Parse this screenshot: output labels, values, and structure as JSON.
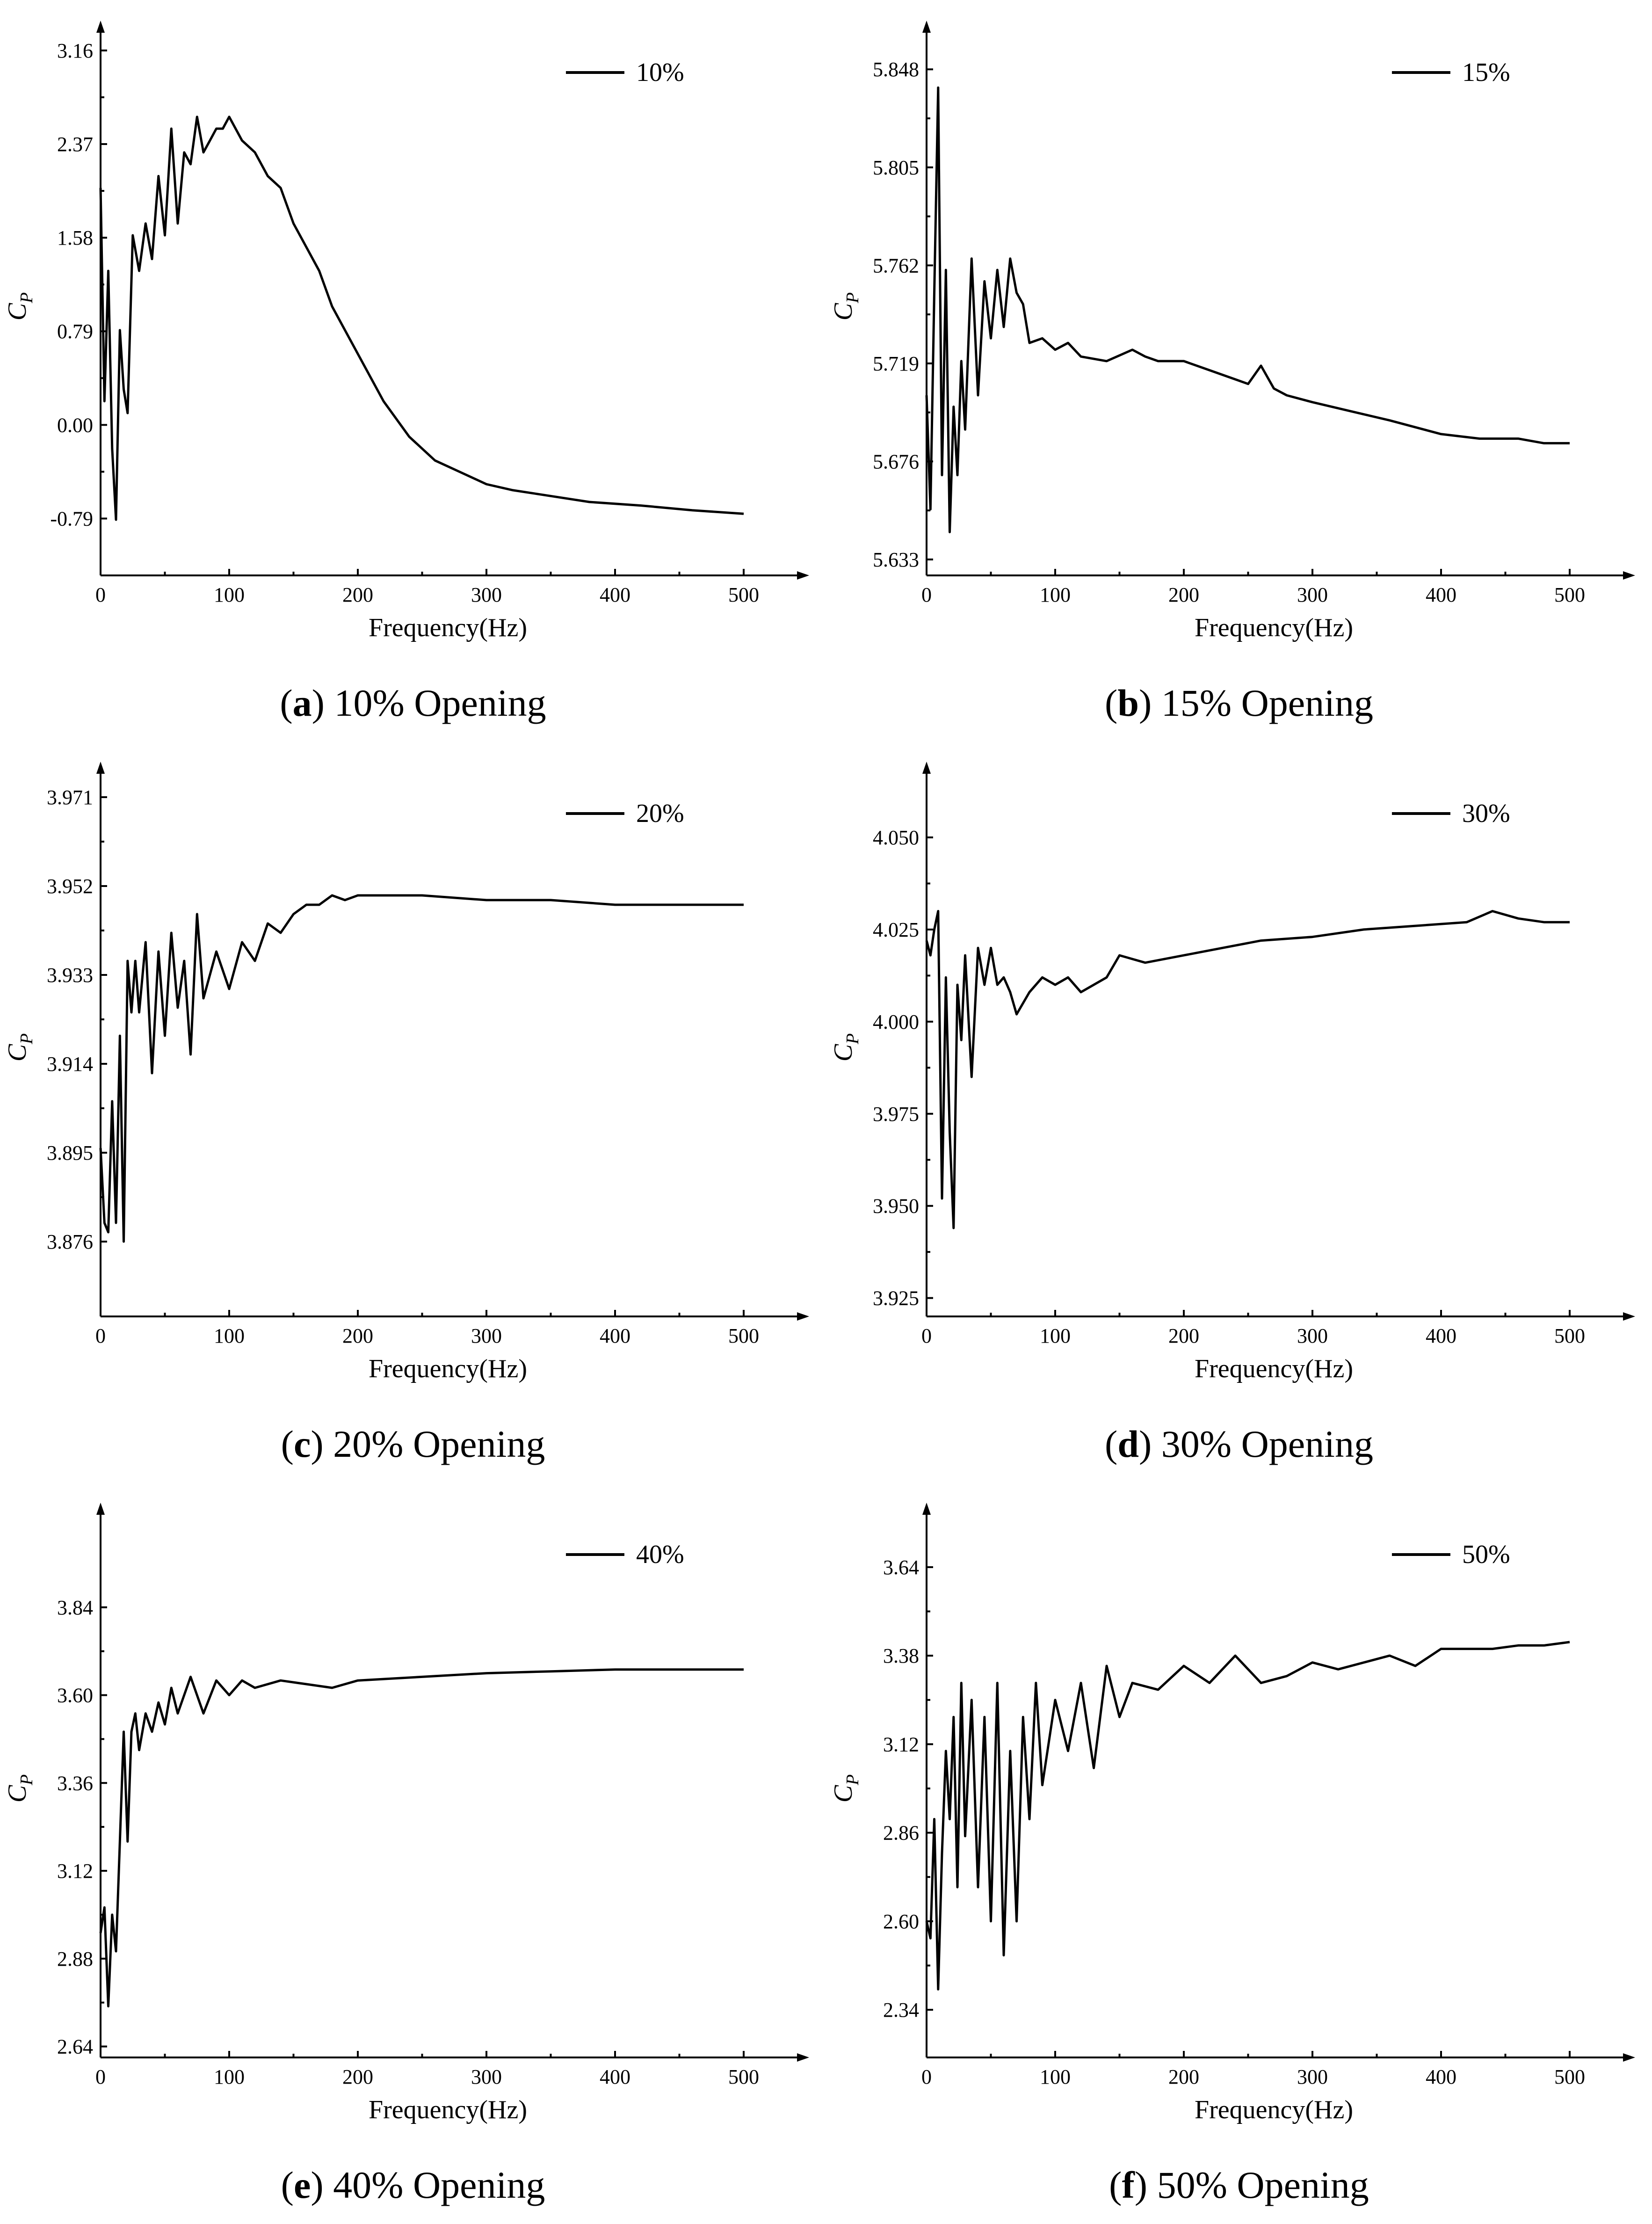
{
  "chart_data": [
    {
      "type": "line",
      "panel": "a",
      "caption_letter": "a",
      "caption_text": "10% Opening",
      "xlabel": "Frequency(Hz)",
      "ylabel": "C",
      "ylabel_sub": "P",
      "legend": "10%",
      "xlim": [
        0,
        540
      ],
      "ylim": [
        -1.27,
        3.27
      ],
      "xticks": [
        0,
        100,
        200,
        300,
        400,
        500
      ],
      "yticks": [
        -0.79,
        0.0,
        0.79,
        1.58,
        2.37,
        3.16
      ],
      "ytick_labels": [
        "-0.79",
        "0.00",
        "0.79",
        "1.58",
        "2.37",
        "3.16"
      ],
      "series": [
        {
          "name": "10%",
          "x": [
            0,
            3,
            6,
            9,
            12,
            15,
            18,
            21,
            25,
            30,
            35,
            40,
            45,
            50,
            55,
            60,
            65,
            70,
            75,
            80,
            85,
            90,
            95,
            100,
            110,
            120,
            130,
            140,
            150,
            160,
            170,
            180,
            190,
            200,
            220,
            240,
            260,
            280,
            300,
            320,
            350,
            380,
            420,
            460,
            500
          ],
          "y": [
            2.0,
            0.2,
            1.3,
            -0.2,
            -0.8,
            0.8,
            0.3,
            0.1,
            1.6,
            1.3,
            1.7,
            1.4,
            2.1,
            1.6,
            2.5,
            1.7,
            2.3,
            2.2,
            2.6,
            2.3,
            2.4,
            2.5,
            2.5,
            2.6,
            2.4,
            2.3,
            2.1,
            2.0,
            1.7,
            1.5,
            1.3,
            1.0,
            0.8,
            0.6,
            0.2,
            -0.1,
            -0.3,
            -0.4,
            -0.5,
            -0.55,
            -0.6,
            -0.65,
            -0.68,
            -0.72,
            -0.75
          ]
        }
      ]
    },
    {
      "type": "line",
      "panel": "b",
      "caption_letter": "b",
      "caption_text": "15% Opening",
      "xlabel": "Frequency(Hz)",
      "ylabel": "C",
      "ylabel_sub": "P",
      "legend": "15%",
      "xlim": [
        0,
        540
      ],
      "ylim": [
        5.626,
        5.862
      ],
      "xticks": [
        0,
        100,
        200,
        300,
        400,
        500
      ],
      "yticks": [
        5.633,
        5.676,
        5.719,
        5.762,
        5.805,
        5.848
      ],
      "ytick_labels": [
        "5.633",
        "5.676",
        "5.719",
        "5.762",
        "5.805",
        "5.848"
      ],
      "series": [
        {
          "name": "15%",
          "x": [
            0,
            3,
            6,
            9,
            12,
            15,
            18,
            21,
            24,
            27,
            30,
            35,
            40,
            45,
            50,
            55,
            60,
            65,
            70,
            75,
            80,
            90,
            100,
            110,
            120,
            140,
            160,
            170,
            180,
            200,
            220,
            240,
            250,
            260,
            270,
            280,
            300,
            330,
            360,
            400,
            430,
            460,
            480,
            500
          ],
          "y": [
            5.705,
            5.655,
            5.75,
            5.84,
            5.67,
            5.76,
            5.645,
            5.7,
            5.67,
            5.72,
            5.69,
            5.765,
            5.705,
            5.755,
            5.73,
            5.76,
            5.735,
            5.765,
            5.75,
            5.745,
            5.728,
            5.73,
            5.725,
            5.728,
            5.722,
            5.72,
            5.725,
            5.722,
            5.72,
            5.72,
            5.716,
            5.712,
            5.71,
            5.718,
            5.708,
            5.705,
            5.702,
            5.698,
            5.694,
            5.688,
            5.686,
            5.686,
            5.684,
            5.684
          ]
        }
      ]
    },
    {
      "type": "line",
      "panel": "c",
      "caption_letter": "c",
      "caption_text": "20% Opening",
      "xlabel": "Frequency(Hz)",
      "ylabel": "C",
      "ylabel_sub": "P",
      "legend": "20%",
      "xlim": [
        0,
        540
      ],
      "ylim": [
        3.86,
        3.975
      ],
      "xticks": [
        0,
        100,
        200,
        300,
        400,
        500
      ],
      "yticks": [
        3.876,
        3.895,
        3.914,
        3.933,
        3.952,
        3.971
      ],
      "ytick_labels": [
        "3.876",
        "3.895",
        "3.914",
        "3.933",
        "3.952",
        "3.971"
      ],
      "series": [
        {
          "name": "20%",
          "x": [
            0,
            3,
            6,
            9,
            12,
            15,
            18,
            21,
            24,
            27,
            30,
            35,
            40,
            45,
            50,
            55,
            60,
            65,
            70,
            75,
            80,
            90,
            100,
            110,
            120,
            130,
            140,
            150,
            160,
            170,
            180,
            190,
            200,
            250,
            300,
            350,
            400,
            450,
            500
          ],
          "y": [
            3.896,
            3.88,
            3.878,
            3.906,
            3.88,
            3.92,
            3.876,
            3.936,
            3.925,
            3.936,
            3.925,
            3.94,
            3.912,
            3.938,
            3.92,
            3.942,
            3.926,
            3.936,
            3.916,
            3.946,
            3.928,
            3.938,
            3.93,
            3.94,
            3.936,
            3.944,
            3.942,
            3.946,
            3.948,
            3.948,
            3.95,
            3.949,
            3.95,
            3.95,
            3.949,
            3.949,
            3.948,
            3.948,
            3.948
          ]
        }
      ]
    },
    {
      "type": "line",
      "panel": "d",
      "caption_letter": "d",
      "caption_text": "30% Opening",
      "xlabel": "Frequency(Hz)",
      "ylabel": "C",
      "ylabel_sub": "P",
      "legend": "30%",
      "xlim": [
        0,
        540
      ],
      "ylim": [
        3.92,
        4.066
      ],
      "xticks": [
        0,
        100,
        200,
        300,
        400,
        500
      ],
      "yticks": [
        3.925,
        3.95,
        3.975,
        4.0,
        4.025,
        4.05
      ],
      "ytick_labels": [
        "3.925",
        "3.950",
        "3.975",
        "4.000",
        "4.025",
        "4.050"
      ],
      "series": [
        {
          "name": "30%",
          "x": [
            0,
            3,
            6,
            9,
            12,
            15,
            18,
            21,
            24,
            27,
            30,
            35,
            40,
            45,
            50,
            55,
            60,
            65,
            70,
            80,
            90,
            100,
            110,
            120,
            130,
            140,
            150,
            170,
            200,
            230,
            260,
            300,
            340,
            380,
            420,
            440,
            460,
            480,
            500
          ],
          "y": [
            4.022,
            4.018,
            4.025,
            4.03,
            3.952,
            4.012,
            3.97,
            3.944,
            4.01,
            3.995,
            4.018,
            3.985,
            4.02,
            4.01,
            4.02,
            4.01,
            4.012,
            4.008,
            4.002,
            4.008,
            4.012,
            4.01,
            4.012,
            4.008,
            4.01,
            4.012,
            4.018,
            4.016,
            4.018,
            4.02,
            4.022,
            4.023,
            4.025,
            4.026,
            4.027,
            4.03,
            4.028,
            4.027,
            4.027
          ]
        }
      ]
    },
    {
      "type": "line",
      "panel": "e",
      "caption_letter": "e",
      "caption_text": "40% Opening",
      "xlabel": "Frequency(Hz)",
      "ylabel": "C",
      "ylabel_sub": "P",
      "legend": "40%",
      "xlim": [
        0,
        540
      ],
      "ylim": [
        2.61,
        4.08
      ],
      "xticks": [
        0,
        100,
        200,
        300,
        400,
        500
      ],
      "yticks": [
        2.64,
        2.88,
        3.12,
        3.36,
        3.6,
        3.84
      ],
      "ytick_labels": [
        "2.64",
        "2.88",
        "3.12",
        "3.36",
        "3.60",
        "3.84"
      ],
      "series": [
        {
          "name": "40%",
          "x": [
            0,
            3,
            6,
            9,
            12,
            15,
            18,
            21,
            24,
            27,
            30,
            35,
            40,
            45,
            50,
            55,
            60,
            70,
            80,
            90,
            100,
            110,
            120,
            140,
            160,
            180,
            200,
            250,
            300,
            350,
            400,
            450,
            500
          ],
          "y": [
            2.95,
            3.02,
            2.75,
            3.0,
            2.9,
            3.2,
            3.5,
            3.2,
            3.5,
            3.55,
            3.45,
            3.55,
            3.5,
            3.58,
            3.52,
            3.62,
            3.55,
            3.65,
            3.55,
            3.64,
            3.6,
            3.64,
            3.62,
            3.64,
            3.63,
            3.62,
            3.64,
            3.65,
            3.66,
            3.665,
            3.67,
            3.67,
            3.67
          ]
        }
      ]
    },
    {
      "type": "line",
      "panel": "f",
      "caption_letter": "f",
      "caption_text": "50% Opening",
      "xlabel": "Frequency(Hz)",
      "ylabel": "C",
      "ylabel_sub": "P",
      "legend": "50%",
      "xlim": [
        0,
        540
      ],
      "ylim": [
        2.2,
        3.78
      ],
      "xticks": [
        0,
        100,
        200,
        300,
        400,
        500
      ],
      "yticks": [
        2.34,
        2.6,
        2.86,
        3.12,
        3.38,
        3.64
      ],
      "ytick_labels": [
        "2.34",
        "2.60",
        "2.86",
        "3.12",
        "3.38",
        "3.64"
      ],
      "series": [
        {
          "name": "50%",
          "x": [
            0,
            3,
            6,
            9,
            12,
            15,
            18,
            21,
            24,
            27,
            30,
            35,
            40,
            45,
            50,
            55,
            60,
            65,
            70,
            75,
            80,
            85,
            90,
            100,
            110,
            120,
            130,
            140,
            150,
            160,
            180,
            200,
            220,
            240,
            260,
            280,
            300,
            320,
            340,
            360,
            380,
            400,
            420,
            440,
            460,
            480,
            500
          ],
          "y": [
            2.6,
            2.55,
            2.9,
            2.4,
            2.8,
            3.1,
            2.9,
            3.2,
            2.7,
            3.3,
            2.85,
            3.25,
            2.7,
            3.2,
            2.6,
            3.3,
            2.5,
            3.1,
            2.6,
            3.2,
            2.9,
            3.3,
            3.0,
            3.25,
            3.1,
            3.3,
            3.05,
            3.35,
            3.2,
            3.3,
            3.28,
            3.35,
            3.3,
            3.38,
            3.3,
            3.32,
            3.36,
            3.34,
            3.36,
            3.38,
            3.35,
            3.4,
            3.4,
            3.4,
            3.41,
            3.41,
            3.42
          ]
        }
      ]
    }
  ]
}
